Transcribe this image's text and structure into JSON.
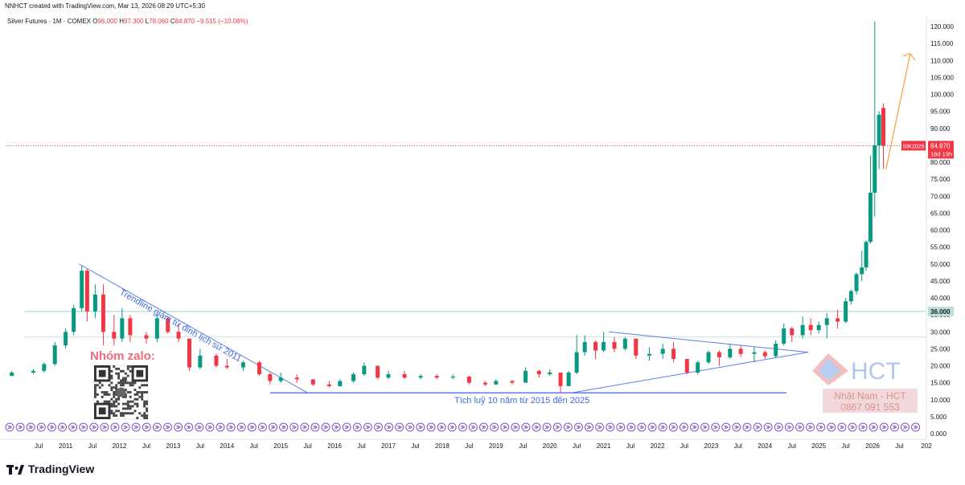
{
  "header": {
    "text": "NNHCT created with TradingView.com, Mar 13, 2026 08:29 UTC+5:30"
  },
  "symbol": {
    "name": "Silver Futures · 1M · COMEX",
    "open_label": "O",
    "open": "96.000",
    "high_label": "H",
    "high": "97.300",
    "low_label": "L",
    "low": "78.060",
    "close_label": "C",
    "close": "84.870",
    "change": "−9.515 (−10.08%)"
  },
  "colors": {
    "up": "#089981",
    "down": "#f23645",
    "trend": "#5b7ee8",
    "hline": "#9bd5c6",
    "arrow": "#f7a035",
    "price_line": "#f23645",
    "event_marker": "#7e57c2"
  },
  "price_axis": {
    "min": 5,
    "max": 120,
    "ticks": [
      "120.000",
      "115.000",
      "110.000",
      "105.000",
      "100.000",
      "95.000",
      "90.000",
      "85.000",
      "80.000",
      "75.000",
      "70.000",
      "65.000",
      "60.000",
      "55.000",
      "50.000",
      "45.000",
      "40.000",
      "35.000",
      "30.000",
      "25.000",
      "20.000",
      "15.000",
      "10.000",
      "5.000",
      "0.000"
    ],
    "last_price_label": "84.870",
    "last_symbol_label": "SIK2026",
    "countdown_label": "18d 19h",
    "level_label": "36.000"
  },
  "time_axis": {
    "labels": [
      {
        "t": "Jul",
        "x": 2010.5
      },
      {
        "t": "2011",
        "x": 2011
      },
      {
        "t": "Jul",
        "x": 2011.5
      },
      {
        "t": "2012",
        "x": 2012
      },
      {
        "t": "Jul",
        "x": 2012.5
      },
      {
        "t": "2013",
        "x": 2013
      },
      {
        "t": "Jul",
        "x": 2013.5
      },
      {
        "t": "2014",
        "x": 2014
      },
      {
        "t": "Jul",
        "x": 2014.5
      },
      {
        "t": "2015",
        "x": 2015
      },
      {
        "t": "Jul",
        "x": 2015.5
      },
      {
        "t": "2016",
        "x": 2016
      },
      {
        "t": "Jul",
        "x": 2016.5
      },
      {
        "t": "2017",
        "x": 2017
      },
      {
        "t": "Jul",
        "x": 2017.5
      },
      {
        "t": "2018",
        "x": 2018
      },
      {
        "t": "Jul",
        "x": 2018.5
      },
      {
        "t": "2019",
        "x": 2019
      },
      {
        "t": "Jul",
        "x": 2019.5
      },
      {
        "t": "2020",
        "x": 2020
      },
      {
        "t": "Jul",
        "x": 2020.5
      },
      {
        "t": "2021",
        "x": 2021
      },
      {
        "t": "Jul",
        "x": 2021.5
      },
      {
        "t": "2022",
        "x": 2022
      },
      {
        "t": "Jul",
        "x": 2022.5
      },
      {
        "t": "2023",
        "x": 2023
      },
      {
        "t": "Jul",
        "x": 2023.5
      },
      {
        "t": "2024",
        "x": 2024
      },
      {
        "t": "Jul",
        "x": 2024.5
      },
      {
        "t": "2025",
        "x": 2025
      },
      {
        "t": "Jul",
        "x": 2025.5
      },
      {
        "t": "2026",
        "x": 2026
      },
      {
        "t": "Jul",
        "x": 2026.5
      },
      {
        "t": "202",
        "x": 2027
      }
    ]
  },
  "annotations": {
    "trendline_text": "Trendline giảm từ đỉnh lịch sử 2011",
    "accumulation_text": "Tích luỹ 10 năm từ 2015 đến 2025",
    "zalo_text": "Nhóm zalo:",
    "brand": "HCT",
    "brand_name": "Nhật Nam - HCT",
    "brand_phone": "0867 091 553"
  },
  "footer": {
    "brand": "TradingView"
  },
  "chart_data": {
    "type": "candlestick",
    "title": "Silver Futures · 1M · COMEX",
    "series": [
      {
        "name": "Silver Futures",
        "points": [
          {
            "x": 2010.0,
            "o": 17.0,
            "h": 18.5,
            "l": 17.0,
            "c": 18.0
          },
          {
            "x": 2010.4,
            "o": 18.0,
            "h": 19.0,
            "l": 17.5,
            "c": 18.5
          },
          {
            "x": 2010.6,
            "o": 18.5,
            "h": 21.0,
            "l": 18.0,
            "c": 20.5
          },
          {
            "x": 2010.8,
            "o": 20.5,
            "h": 27.0,
            "l": 20.0,
            "c": 26.0
          },
          {
            "x": 2011.0,
            "o": 26.0,
            "h": 31.0,
            "l": 25.0,
            "c": 30.0
          },
          {
            "x": 2011.15,
            "o": 30.0,
            "h": 38.0,
            "l": 29.0,
            "c": 37.0
          },
          {
            "x": 2011.3,
            "o": 37.0,
            "h": 49.5,
            "l": 36.0,
            "c": 48.0
          },
          {
            "x": 2011.4,
            "o": 48.0,
            "h": 48.5,
            "l": 33.0,
            "c": 36.0
          },
          {
            "x": 2011.55,
            "o": 36.0,
            "h": 44.0,
            "l": 34.0,
            "c": 41.0
          },
          {
            "x": 2011.7,
            "o": 41.0,
            "h": 44.0,
            "l": 26.0,
            "c": 30.0
          },
          {
            "x": 2011.9,
            "o": 30.0,
            "h": 35.0,
            "l": 26.0,
            "c": 28.0
          },
          {
            "x": 2012.05,
            "o": 28.0,
            "h": 37.0,
            "l": 27.0,
            "c": 34.0
          },
          {
            "x": 2012.2,
            "o": 34.0,
            "h": 35.0,
            "l": 27.0,
            "c": 29.0
          },
          {
            "x": 2012.5,
            "o": 29.0,
            "h": 30.0,
            "l": 26.5,
            "c": 28.0
          },
          {
            "x": 2012.7,
            "o": 28.0,
            "h": 35.0,
            "l": 27.0,
            "c": 34.0
          },
          {
            "x": 2012.9,
            "o": 34.0,
            "h": 34.5,
            "l": 29.5,
            "c": 30.0
          },
          {
            "x": 2013.1,
            "o": 30.0,
            "h": 32.0,
            "l": 27.0,
            "c": 28.0
          },
          {
            "x": 2013.3,
            "o": 28.0,
            "h": 28.0,
            "l": 18.5,
            "c": 19.5
          },
          {
            "x": 2013.5,
            "o": 19.5,
            "h": 25.0,
            "l": 19.0,
            "c": 23.0
          },
          {
            "x": 2013.8,
            "o": 23.0,
            "h": 23.5,
            "l": 19.5,
            "c": 20.0
          },
          {
            "x": 2014.0,
            "o": 20.0,
            "h": 22.0,
            "l": 19.0,
            "c": 19.5
          },
          {
            "x": 2014.3,
            "o": 19.5,
            "h": 21.5,
            "l": 18.5,
            "c": 21.0
          },
          {
            "x": 2014.6,
            "o": 21.0,
            "h": 21.5,
            "l": 17.0,
            "c": 17.5
          },
          {
            "x": 2014.8,
            "o": 17.5,
            "h": 18.0,
            "l": 14.5,
            "c": 15.5
          },
          {
            "x": 2015.0,
            "o": 15.5,
            "h": 18.0,
            "l": 15.0,
            "c": 16.5
          },
          {
            "x": 2015.3,
            "o": 16.5,
            "h": 17.5,
            "l": 15.0,
            "c": 16.0
          },
          {
            "x": 2015.6,
            "o": 16.0,
            "h": 16.0,
            "l": 14.0,
            "c": 14.5
          },
          {
            "x": 2015.9,
            "o": 14.5,
            "h": 15.5,
            "l": 13.6,
            "c": 14.0
          },
          {
            "x": 2016.1,
            "o": 14.0,
            "h": 16.0,
            "l": 13.8,
            "c": 15.5
          },
          {
            "x": 2016.35,
            "o": 15.5,
            "h": 18.0,
            "l": 15.0,
            "c": 17.5
          },
          {
            "x": 2016.55,
            "o": 17.5,
            "h": 21.0,
            "l": 17.0,
            "c": 20.0
          },
          {
            "x": 2016.8,
            "o": 20.0,
            "h": 20.0,
            "l": 16.0,
            "c": 16.5
          },
          {
            "x": 2017.0,
            "o": 16.5,
            "h": 18.5,
            "l": 16.0,
            "c": 17.5
          },
          {
            "x": 2017.3,
            "o": 17.5,
            "h": 18.5,
            "l": 16.0,
            "c": 16.5
          },
          {
            "x": 2017.6,
            "o": 16.5,
            "h": 17.5,
            "l": 16.0,
            "c": 17.0
          },
          {
            "x": 2017.9,
            "o": 17.0,
            "h": 17.5,
            "l": 16.0,
            "c": 16.5
          },
          {
            "x": 2018.2,
            "o": 16.5,
            "h": 17.5,
            "l": 16.0,
            "c": 16.8
          },
          {
            "x": 2018.5,
            "o": 16.8,
            "h": 17.0,
            "l": 14.5,
            "c": 15.0
          },
          {
            "x": 2018.8,
            "o": 15.0,
            "h": 15.5,
            "l": 14.0,
            "c": 14.5
          },
          {
            "x": 2019.0,
            "o": 14.5,
            "h": 16.0,
            "l": 14.3,
            "c": 15.5
          },
          {
            "x": 2019.3,
            "o": 15.5,
            "h": 15.7,
            "l": 14.5,
            "c": 15.0
          },
          {
            "x": 2019.55,
            "o": 15.0,
            "h": 19.5,
            "l": 15.0,
            "c": 18.5
          },
          {
            "x": 2019.8,
            "o": 18.5,
            "h": 18.8,
            "l": 16.5,
            "c": 17.5
          },
          {
            "x": 2020.0,
            "o": 17.5,
            "h": 19.0,
            "l": 17.0,
            "c": 18.0
          },
          {
            "x": 2020.2,
            "o": 18.0,
            "h": 18.0,
            "l": 11.8,
            "c": 14.0
          },
          {
            "x": 2020.35,
            "o": 14.0,
            "h": 18.5,
            "l": 14.0,
            "c": 18.0
          },
          {
            "x": 2020.5,
            "o": 18.0,
            "h": 29.0,
            "l": 17.5,
            "c": 24.0
          },
          {
            "x": 2020.65,
            "o": 24.0,
            "h": 29.0,
            "l": 23.0,
            "c": 27.0
          },
          {
            "x": 2020.85,
            "o": 27.0,
            "h": 27.5,
            "l": 22.0,
            "c": 24.5
          },
          {
            "x": 2021.0,
            "o": 24.5,
            "h": 30.0,
            "l": 24.0,
            "c": 27.0
          },
          {
            "x": 2021.2,
            "o": 27.0,
            "h": 28.5,
            "l": 24.0,
            "c": 25.0
          },
          {
            "x": 2021.4,
            "o": 25.0,
            "h": 28.5,
            "l": 24.5,
            "c": 28.0
          },
          {
            "x": 2021.6,
            "o": 28.0,
            "h": 28.0,
            "l": 22.0,
            "c": 23.0
          },
          {
            "x": 2021.85,
            "o": 23.0,
            "h": 25.5,
            "l": 21.5,
            "c": 23.5
          },
          {
            "x": 2022.1,
            "o": 23.5,
            "h": 26.5,
            "l": 22.0,
            "c": 25.0
          },
          {
            "x": 2022.3,
            "o": 25.0,
            "h": 27.0,
            "l": 21.0,
            "c": 22.0
          },
          {
            "x": 2022.55,
            "o": 22.0,
            "h": 22.0,
            "l": 17.5,
            "c": 18.0
          },
          {
            "x": 2022.75,
            "o": 18.0,
            "h": 21.5,
            "l": 17.5,
            "c": 21.0
          },
          {
            "x": 2022.95,
            "o": 21.0,
            "h": 24.5,
            "l": 20.5,
            "c": 24.0
          },
          {
            "x": 2023.15,
            "o": 24.0,
            "h": 24.5,
            "l": 20.0,
            "c": 22.5
          },
          {
            "x": 2023.35,
            "o": 22.5,
            "h": 26.5,
            "l": 22.0,
            "c": 25.0
          },
          {
            "x": 2023.55,
            "o": 25.0,
            "h": 26.0,
            "l": 22.5,
            "c": 23.5
          },
          {
            "x": 2023.8,
            "o": 23.5,
            "h": 25.5,
            "l": 21.0,
            "c": 24.0
          },
          {
            "x": 2024.0,
            "o": 24.0,
            "h": 24.5,
            "l": 22.0,
            "c": 22.8
          },
          {
            "x": 2024.2,
            "o": 22.8,
            "h": 27.5,
            "l": 22.5,
            "c": 26.5
          },
          {
            "x": 2024.35,
            "o": 26.5,
            "h": 32.5,
            "l": 26.0,
            "c": 31.0
          },
          {
            "x": 2024.5,
            "o": 31.0,
            "h": 31.5,
            "l": 27.0,
            "c": 29.0
          },
          {
            "x": 2024.7,
            "o": 29.0,
            "h": 34.5,
            "l": 28.0,
            "c": 32.0
          },
          {
            "x": 2024.85,
            "o": 32.0,
            "h": 34.0,
            "l": 29.0,
            "c": 30.5
          },
          {
            "x": 2025.0,
            "o": 30.5,
            "h": 33.0,
            "l": 29.5,
            "c": 32.0
          },
          {
            "x": 2025.15,
            "o": 32.0,
            "h": 35.5,
            "l": 28.0,
            "c": 34.0
          },
          {
            "x": 2025.35,
            "o": 34.0,
            "h": 36.5,
            "l": 31.0,
            "c": 33.0
          },
          {
            "x": 2025.5,
            "o": 33.0,
            "h": 40.0,
            "l": 32.5,
            "c": 39.0
          },
          {
            "x": 2025.6,
            "o": 39.0,
            "h": 42.5,
            "l": 38.0,
            "c": 42.0
          },
          {
            "x": 2025.7,
            "o": 42.0,
            "h": 47.5,
            "l": 41.0,
            "c": 47.0
          },
          {
            "x": 2025.8,
            "o": 47.0,
            "h": 54.0,
            "l": 45.0,
            "c": 49.0
          },
          {
            "x": 2025.88,
            "o": 49.0,
            "h": 57.0,
            "l": 48.0,
            "c": 56.5
          },
          {
            "x": 2025.96,
            "o": 56.5,
            "h": 82.0,
            "l": 56.0,
            "c": 71.0
          },
          {
            "x": 2026.04,
            "o": 71.0,
            "h": 121.5,
            "l": 64.0,
            "c": 85.0
          },
          {
            "x": 2026.12,
            "o": 85.0,
            "h": 95.0,
            "l": 78.0,
            "c": 94.0
          },
          {
            "x": 2026.2,
            "o": 96.0,
            "h": 97.3,
            "l": 78.06,
            "c": 84.87
          }
        ]
      }
    ],
    "overlays": {
      "horizontal_level": 36.0,
      "resistance_level": 28.5,
      "accumulation_base": 12.0,
      "trendline": [
        {
          "x": 2011.25,
          "y": 50.0
        },
        {
          "x": 2015.5,
          "y": 12.0
        }
      ],
      "triangle_top": [
        {
          "x": 2021.1,
          "y": 30.0
        },
        {
          "x": 2024.8,
          "y": 24.0
        }
      ],
      "triangle_bottom": [
        {
          "x": 2020.4,
          "y": 12.0
        },
        {
          "x": 2024.8,
          "y": 24.0
        }
      ],
      "accumulation_line": [
        {
          "x": 2014.8,
          "y": 12.0
        },
        {
          "x": 2024.4,
          "y": 12.0
        }
      ],
      "projection_arrow": [
        {
          "x": 2026.25,
          "y": 78.0
        },
        {
          "x": 2026.7,
          "y": 112.0
        }
      ]
    },
    "x_range": [
      2009.9,
      2027.0
    ],
    "y_range": [
      5,
      120
    ],
    "ylabel": "",
    "xlabel": "",
    "grid": false
  }
}
